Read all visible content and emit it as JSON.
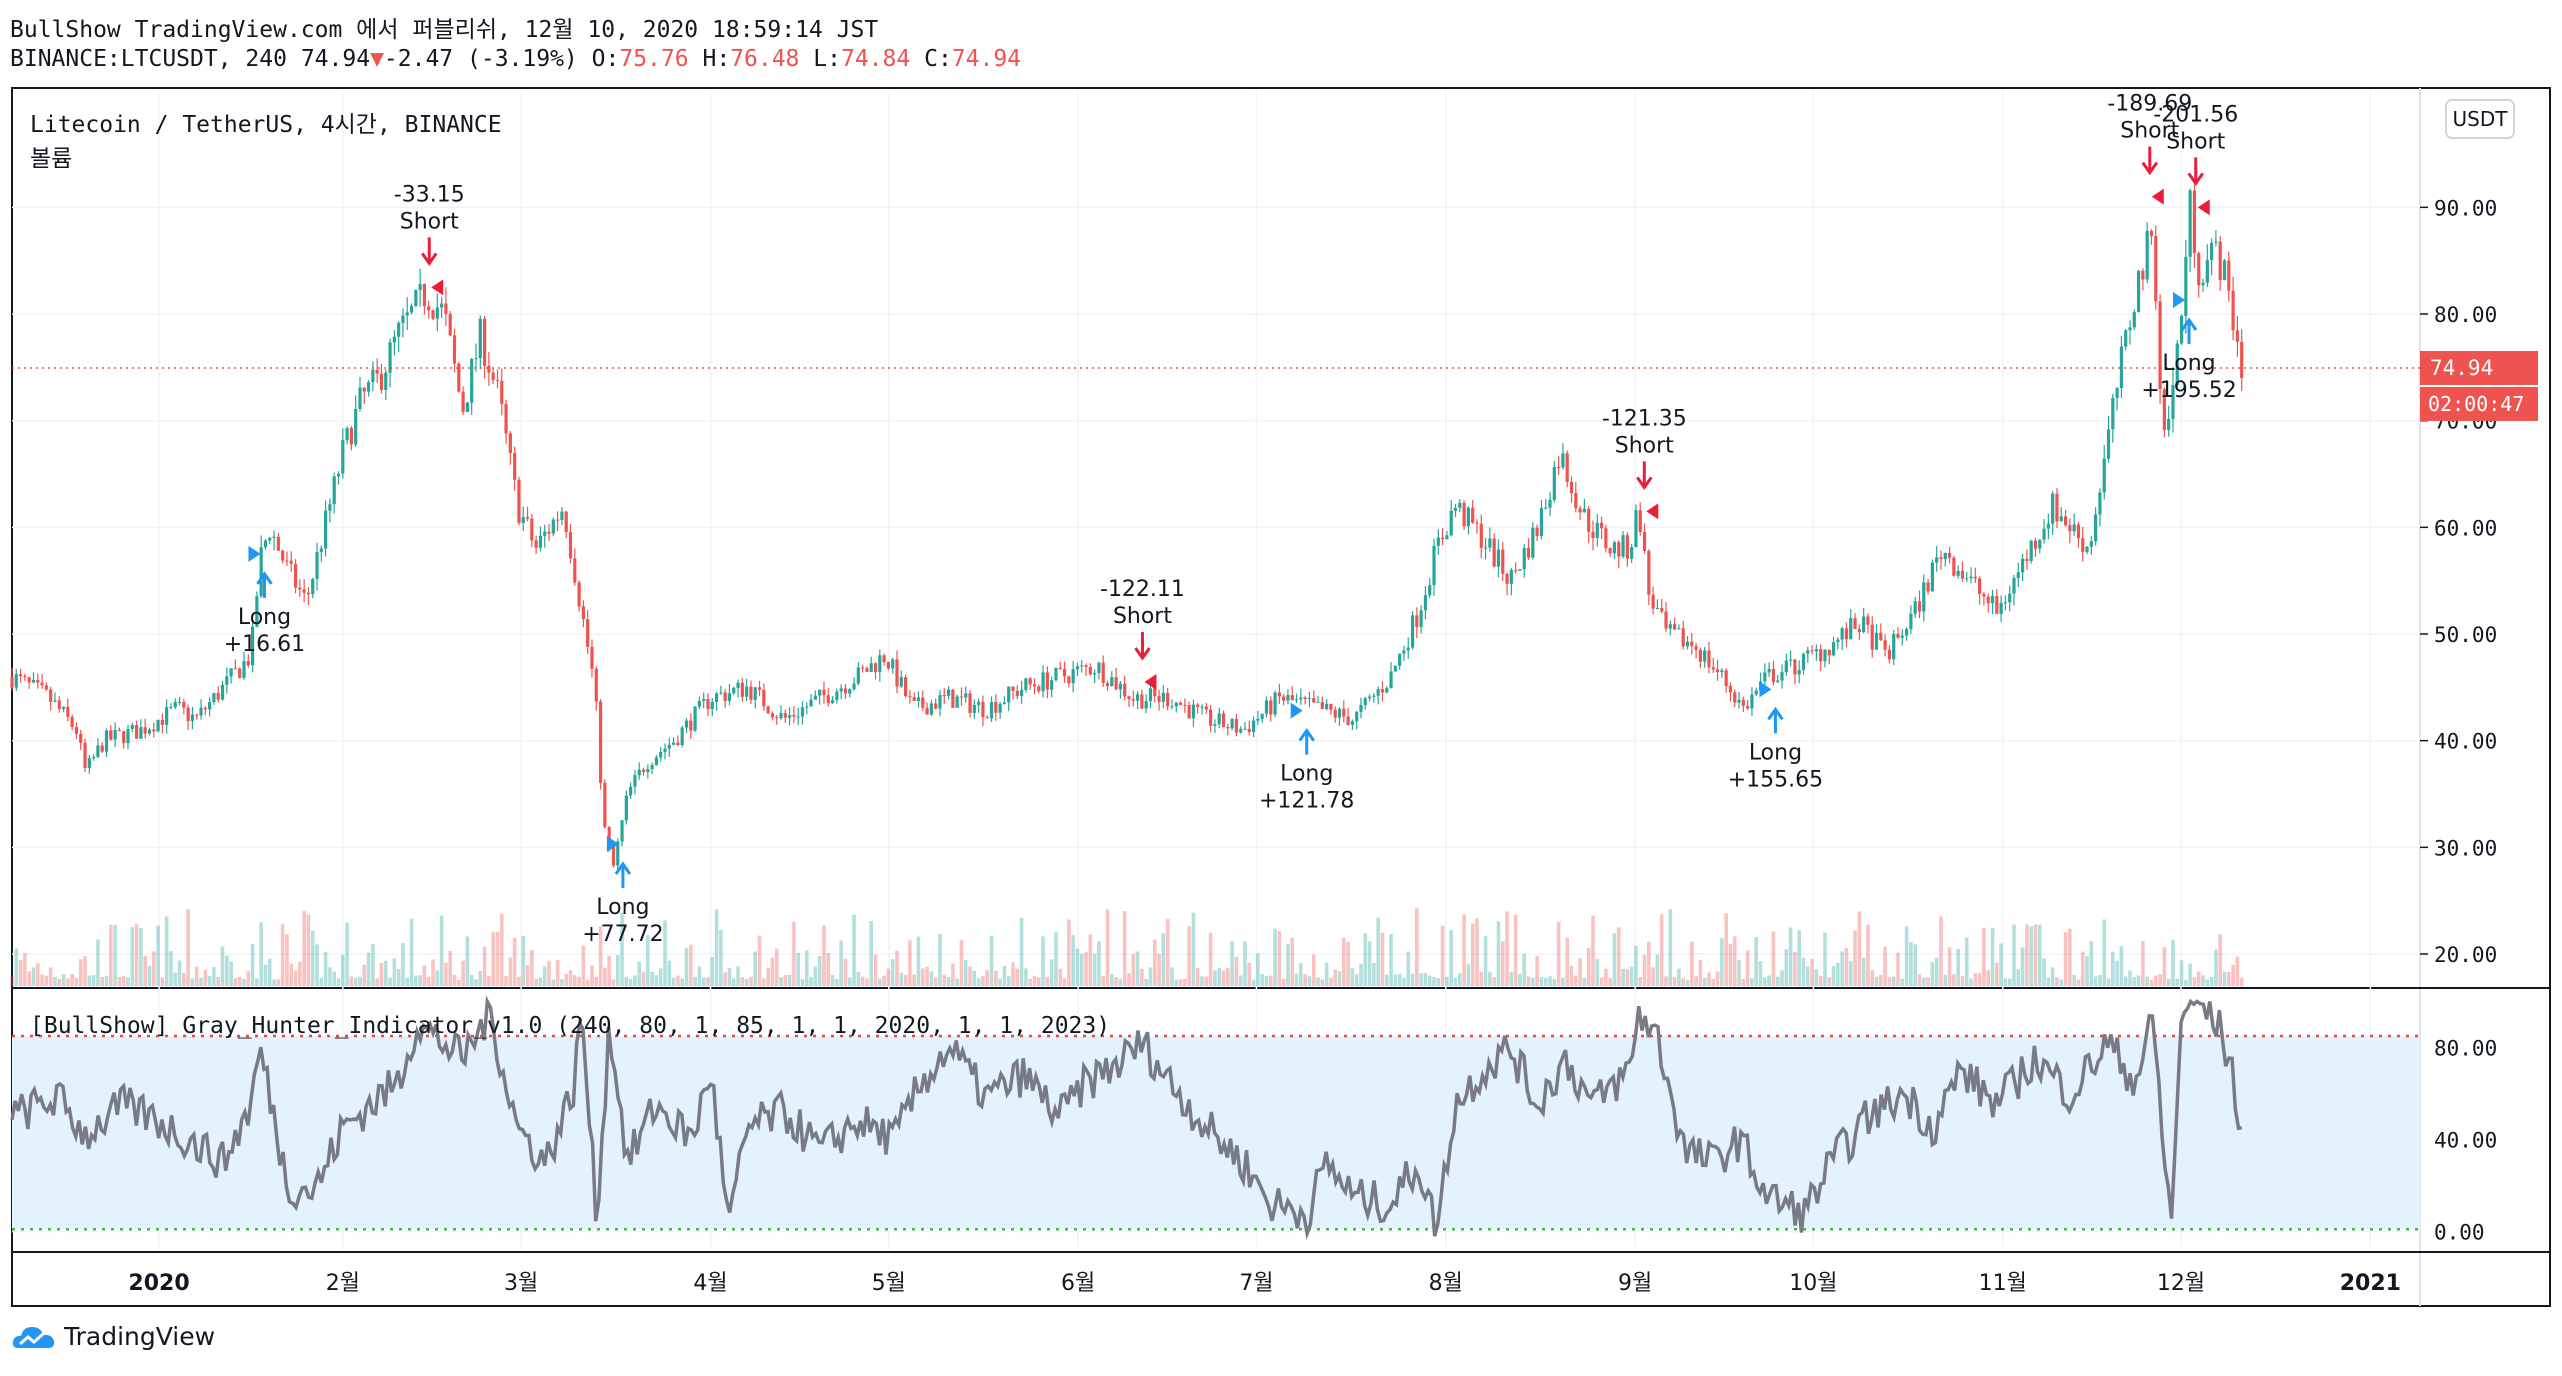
{
  "header": {
    "line1": "BullShow TradingView.com 에서 퍼블리쉬, 12월 10, 2020 18:59:14 JST",
    "symbol": "BINANCE:LTCUSDT, 240",
    "last": "74.94",
    "arrow": "▼",
    "change": "-2.47 (-3.19%)",
    "o_label": "O:",
    "o": "75.76",
    "h_label": "H:",
    "h": "76.48",
    "l_label": "L:",
    "l": "74.84",
    "c_label": "C:",
    "c": "74.94"
  },
  "pane": {
    "title": "Litecoin / TetherUS, 4시간, BINANCE",
    "volume_label": "볼륨",
    "currency_badge": "USDT",
    "price_tag": "74.94",
    "countdown_tag": "02:00:47"
  },
  "indicator": {
    "title": "[BullShow] Gray_Hunter_Indicator_v1.0 (240, 80, 1, 85, 1, 1, 2020, 1, 1, 2023)"
  },
  "branding": {
    "logo_text": "TradingView"
  },
  "colors": {
    "up": "#26a69a",
    "down": "#ef5350",
    "price_line": "#ef5350",
    "long_signal": "#2196f3",
    "short_signal": "#e91e3c",
    "oscillator": "#787b86",
    "band_fill": "#e3f2fd",
    "upper_band": "#f44336",
    "lower_band": "#4caf50"
  },
  "chart_data": [
    {
      "type": "candlestick",
      "title": "Litecoin / TetherUS, 4시간, BINANCE",
      "ylim": [
        17,
        101
      ],
      "y_ticks": [
        "20.00",
        "30.00",
        "40.00",
        "50.00",
        "60.00",
        "70.00",
        "80.00",
        "90.00"
      ],
      "x_ticks": [
        {
          "t": 0.0,
          "label": "2020"
        },
        {
          "t": 1.0,
          "label": "2월"
        },
        {
          "t": 1.97,
          "label": "3월"
        },
        {
          "t": 3.0,
          "label": "4월"
        },
        {
          "t": 3.97,
          "label": "5월"
        },
        {
          "t": 5.0,
          "label": "6월"
        },
        {
          "t": 5.97,
          "label": "7월"
        },
        {
          "t": 7.0,
          "label": "8월"
        },
        {
          "t": 8.03,
          "label": "9월"
        },
        {
          "t": 9.0,
          "label": "10월"
        },
        {
          "t": 10.03,
          "label": "11월"
        },
        {
          "t": 11.0,
          "label": "12월"
        },
        {
          "t": 12.03,
          "label": "2021"
        }
      ],
      "x_range": [
        -0.8,
        12.3
      ],
      "price_path": [
        [
          -0.8,
          46
        ],
        [
          -0.6,
          44
        ],
        [
          -0.45,
          41
        ],
        [
          -0.4,
          37
        ],
        [
          -0.3,
          40
        ],
        [
          -0.1,
          41
        ],
        [
          0.0,
          42
        ],
        [
          0.1,
          43
        ],
        [
          0.2,
          42
        ],
        [
          0.35,
          45
        ],
        [
          0.5,
          48
        ],
        [
          0.55,
          57
        ],
        [
          0.6,
          60
        ],
        [
          0.7,
          56
        ],
        [
          0.8,
          53
        ],
        [
          0.9,
          60
        ],
        [
          1.0,
          67
        ],
        [
          1.1,
          72
        ],
        [
          1.2,
          74
        ],
        [
          1.3,
          78
        ],
        [
          1.45,
          82
        ],
        [
          1.55,
          80
        ],
        [
          1.65,
          71
        ],
        [
          1.75,
          78
        ],
        [
          1.85,
          72
        ],
        [
          1.95,
          62
        ],
        [
          2.05,
          58
        ],
        [
          2.2,
          62
        ],
        [
          2.3,
          52
        ],
        [
          2.37,
          45
        ],
        [
          2.42,
          32
        ],
        [
          2.47,
          28
        ],
        [
          2.55,
          35
        ],
        [
          2.65,
          38
        ],
        [
          2.8,
          40
        ],
        [
          3.0,
          44
        ],
        [
          3.2,
          45
        ],
        [
          3.4,
          42
        ],
        [
          3.6,
          44
        ],
        [
          3.8,
          46
        ],
        [
          3.95,
          48
        ],
        [
          4.1,
          43
        ],
        [
          4.3,
          44
        ],
        [
          4.5,
          43
        ],
        [
          4.7,
          45
        ],
        [
          4.9,
          46
        ],
        [
          5.1,
          47
        ],
        [
          5.3,
          44
        ],
        [
          5.5,
          44
        ],
        [
          5.7,
          42
        ],
        [
          5.9,
          41
        ],
        [
          6.1,
          44
        ],
        [
          6.3,
          43
        ],
        [
          6.5,
          42
        ],
        [
          6.7,
          46
        ],
        [
          6.85,
          52
        ],
        [
          6.95,
          58
        ],
        [
          7.05,
          62
        ],
        [
          7.2,
          59
        ],
        [
          7.35,
          55
        ],
        [
          7.5,
          60
        ],
        [
          7.62,
          67
        ],
        [
          7.75,
          61
        ],
        [
          7.9,
          58
        ],
        [
          8.0,
          58
        ],
        [
          8.05,
          62
        ],
        [
          8.1,
          54
        ],
        [
          8.2,
          50
        ],
        [
          8.35,
          49
        ],
        [
          8.5,
          46
        ],
        [
          8.62,
          43
        ],
        [
          8.75,
          46
        ],
        [
          8.9,
          47
        ],
        [
          9.1,
          49
        ],
        [
          9.25,
          51
        ],
        [
          9.4,
          48
        ],
        [
          9.55,
          52
        ],
        [
          9.7,
          58
        ],
        [
          9.85,
          55
        ],
        [
          10.0,
          52
        ],
        [
          10.15,
          57
        ],
        [
          10.3,
          62
        ],
        [
          10.5,
          58
        ],
        [
          10.65,
          73
        ],
        [
          10.75,
          82
        ],
        [
          10.85,
          88
        ],
        [
          10.9,
          68
        ],
        [
          10.95,
          72
        ],
        [
          11.0,
          80
        ],
        [
          11.05,
          90
        ],
        [
          11.1,
          84
        ],
        [
          11.2,
          86
        ],
        [
          11.28,
          80
        ],
        [
          11.33,
          75
        ]
      ],
      "volume_range": [
        0,
        1
      ],
      "signals": [
        {
          "side": "Long",
          "t": 0.53,
          "price": 56.2,
          "text": "+16.61"
        },
        {
          "side": "Short",
          "t": 1.47,
          "price": 84.0,
          "text": "-33.15"
        },
        {
          "side": "Long",
          "t": 2.48,
          "price": 29.0,
          "text": "+77.72"
        },
        {
          "side": "Short",
          "t": 5.35,
          "price": 47.0,
          "text": "-122.11"
        },
        {
          "side": "Long",
          "t": 6.2,
          "price": 41.5,
          "text": "+121.78"
        },
        {
          "side": "Short",
          "t": 8.08,
          "price": 63.0,
          "text": "-121.35"
        },
        {
          "side": "Long",
          "t": 8.75,
          "price": 43.5,
          "text": "+155.65"
        },
        {
          "side": "Short",
          "t": 10.83,
          "price": 92.5,
          "text": "-189.69"
        },
        {
          "side": "Long",
          "t": 11.0,
          "price": 80.0,
          "text": "+195.52"
        },
        {
          "side": "Short",
          "t": 11.08,
          "price": 91.5,
          "text": "-201.56"
        }
      ],
      "last_price": 74.94
    },
    {
      "type": "line",
      "title": "[BullShow] Gray_Hunter_Indicator_v1.0 (240, 80, 1, 85, 1, 1, 2020, 1, 1, 2023)",
      "ylim": [
        -8,
        105
      ],
      "y_ticks": [
        "0.00",
        "40.00",
        "80.00"
      ],
      "bands": {
        "upper": 85,
        "lower": 1
      },
      "series": [
        {
          "path": [
            [
              -0.8,
              50
            ],
            [
              -0.55,
              58
            ],
            [
              -0.4,
              42
            ],
            [
              -0.2,
              55
            ],
            [
              0.0,
              48
            ],
            [
              0.2,
              38
            ],
            [
              0.35,
              30
            ],
            [
              0.5,
              55
            ],
            [
              0.55,
              80
            ],
            [
              0.7,
              20
            ],
            [
              0.85,
              18
            ],
            [
              1.0,
              45
            ],
            [
              1.15,
              55
            ],
            [
              1.3,
              65
            ],
            [
              1.4,
              90
            ],
            [
              1.5,
              85
            ],
            [
              1.65,
              75
            ],
            [
              1.8,
              95
            ],
            [
              1.95,
              45
            ],
            [
              2.1,
              30
            ],
            [
              2.25,
              60
            ],
            [
              2.3,
              95
            ],
            [
              2.38,
              5
            ],
            [
              2.45,
              90
            ],
            [
              2.55,
              30
            ],
            [
              2.7,
              55
            ],
            [
              2.9,
              40
            ],
            [
              3.0,
              70
            ],
            [
              3.1,
              2
            ],
            [
              3.2,
              45
            ],
            [
              3.4,
              52
            ],
            [
              3.6,
              35
            ],
            [
              3.8,
              48
            ],
            [
              4.0,
              40
            ],
            [
              4.15,
              65
            ],
            [
              4.3,
              80
            ],
            [
              4.5,
              58
            ],
            [
              4.7,
              68
            ],
            [
              4.9,
              50
            ],
            [
              5.05,
              65
            ],
            [
              5.2,
              72
            ],
            [
              5.35,
              82
            ],
            [
              5.5,
              65
            ],
            [
              5.7,
              45
            ],
            [
              5.9,
              30
            ],
            [
              6.05,
              12
            ],
            [
              6.25,
              8
            ],
            [
              6.35,
              30
            ],
            [
              6.5,
              15
            ],
            [
              6.7,
              12
            ],
            [
              6.85,
              30
            ],
            [
              6.95,
              0
            ],
            [
              7.05,
              55
            ],
            [
              7.2,
              70
            ],
            [
              7.35,
              80
            ],
            [
              7.5,
              55
            ],
            [
              7.65,
              75
            ],
            [
              7.8,
              55
            ],
            [
              8.0,
              70
            ],
            [
              8.05,
              95
            ],
            [
              8.15,
              85
            ],
            [
              8.3,
              35
            ],
            [
              8.45,
              30
            ],
            [
              8.6,
              40
            ],
            [
              8.75,
              15
            ],
            [
              8.95,
              8
            ],
            [
              9.1,
              30
            ],
            [
              9.3,
              50
            ],
            [
              9.5,
              60
            ],
            [
              9.65,
              45
            ],
            [
              9.8,
              70
            ],
            [
              10.0,
              55
            ],
            [
              10.2,
              75
            ],
            [
              10.4,
              60
            ],
            [
              10.6,
              82
            ],
            [
              10.75,
              65
            ],
            [
              10.85,
              92
            ],
            [
              10.9,
              40
            ],
            [
              10.95,
              2
            ],
            [
              11.0,
              95
            ],
            [
              11.1,
              100
            ],
            [
              11.2,
              90
            ],
            [
              11.28,
              70
            ],
            [
              11.33,
              38
            ]
          ]
        }
      ]
    }
  ]
}
